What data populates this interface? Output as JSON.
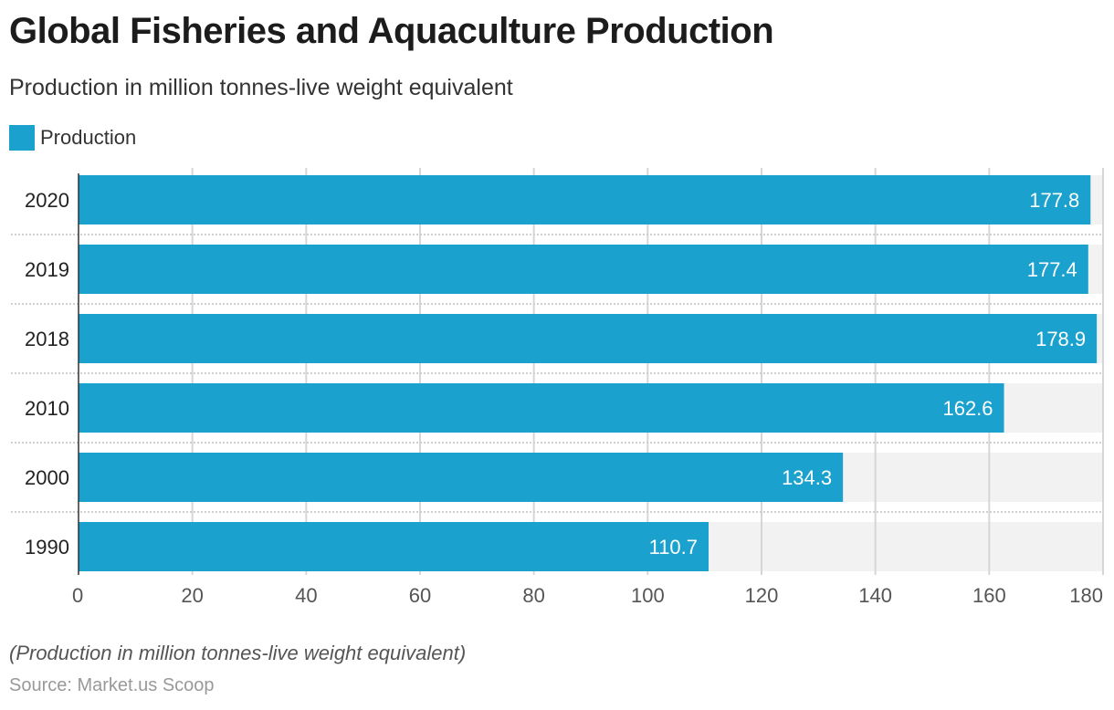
{
  "chart_data": {
    "type": "bar",
    "orientation": "horizontal",
    "title": "Global Fisheries and Aquaculture Production",
    "subtitle": "Production in million tonnes-live weight equivalent",
    "legend": [
      {
        "name": "Production",
        "color": "#1aa1cd"
      }
    ],
    "categories": [
      "2020",
      "2019",
      "2018",
      "2010",
      "2000",
      "1990"
    ],
    "series": [
      {
        "name": "Production",
        "values": [
          177.8,
          177.4,
          178.9,
          162.6,
          134.3,
          110.7
        ]
      }
    ],
    "value_labels": [
      "177.8",
      "177.4",
      "178.9",
      "162.6",
      "134.3",
      "110.7"
    ],
    "xlim": [
      0,
      180
    ],
    "xticks": [
      "0",
      "20",
      "40",
      "60",
      "80",
      "100",
      "120",
      "140",
      "160",
      "180"
    ],
    "xtick_values": [
      0,
      20,
      40,
      60,
      80,
      100,
      120,
      140,
      160,
      180
    ],
    "grid": true,
    "legend_position": "top-left"
  },
  "footer": {
    "note": "(Production in million tonnes-live weight equivalent)",
    "source": "Source: Market.us Scoop"
  },
  "colors": {
    "bar": "#1aa1cd",
    "track": "#f2f2f2",
    "grid": "#d6d6d6"
  }
}
